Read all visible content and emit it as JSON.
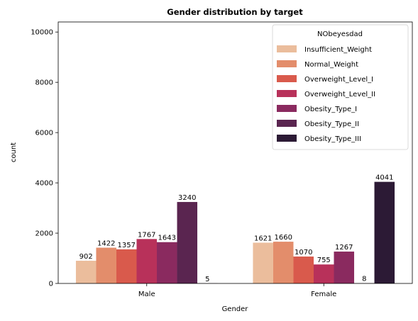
{
  "chart_data": {
    "type": "bar",
    "title": "Gender distribution by target",
    "xlabel": "Gender",
    "ylabel": "count",
    "categories": [
      "Male",
      "Female"
    ],
    "ylim": [
      0,
      10400
    ],
    "yticks": [
      0,
      2000,
      4000,
      6000,
      8000,
      10000
    ],
    "grid": false,
    "legend": {
      "title": "NObeyesdad",
      "placement": "top-right"
    },
    "series": [
      {
        "name": "Insufficient_Weight",
        "color": "#ebbd9c",
        "values": [
          902,
          1621
        ]
      },
      {
        "name": "Normal_Weight",
        "color": "#e38d6b",
        "values": [
          1422,
          1660
        ]
      },
      {
        "name": "Overweight_Level_I",
        "color": "#d95a4c",
        "values": [
          1357,
          1070
        ]
      },
      {
        "name": "Overweight_Level_II",
        "color": "#b8315a",
        "values": [
          1767,
          755
        ]
      },
      {
        "name": "Obesity_Type_I",
        "color": "#8a2a5f",
        "values": [
          1643,
          1267
        ]
      },
      {
        "name": "Obesity_Type_II",
        "color": "#5a2550",
        "values": [
          3240,
          8
        ]
      },
      {
        "name": "Obesity_Type_III",
        "color": "#2c1a35",
        "values": [
          5,
          4041
        ]
      }
    ]
  }
}
